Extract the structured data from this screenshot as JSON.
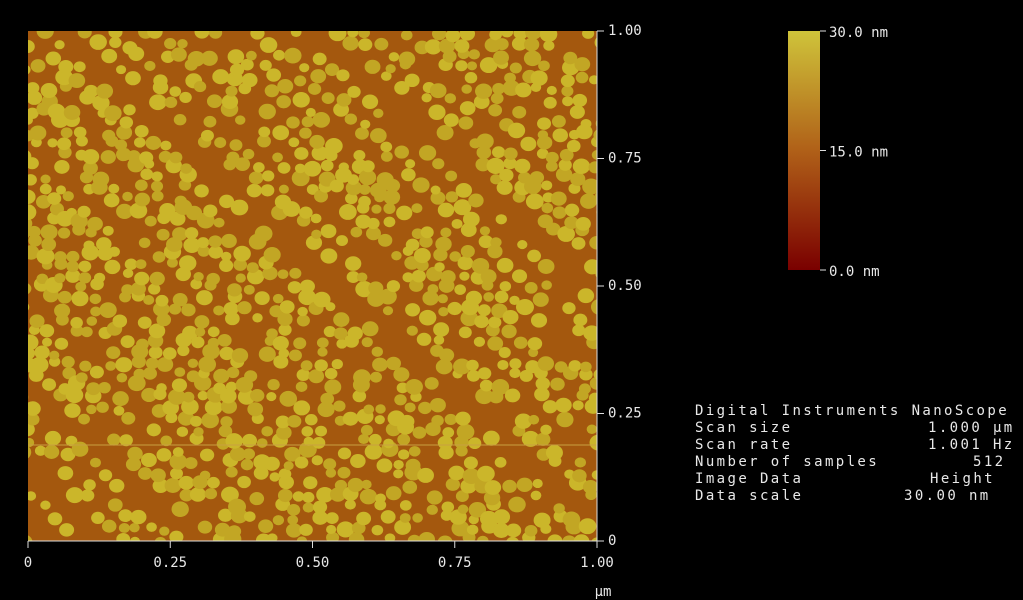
{
  "image": {
    "y_axis": {
      "ticks": [
        "1.00",
        "0.75",
        "0.50",
        "0.25",
        "0"
      ]
    },
    "x_axis": {
      "ticks": [
        "0",
        "0.25",
        "0.50",
        "0.75",
        "1.00"
      ],
      "unit": "µm"
    },
    "color_bar": {
      "labels": [
        "30.0 nm",
        "15.0 nm",
        "0.0 nm"
      ]
    }
  },
  "info_panel": {
    "header": "Digital Instruments NanoScope",
    "rows": [
      [
        "Scan size",
        "1.000 µm"
      ],
      [
        "Scan rate",
        "1.001 Hz"
      ],
      [
        "Number of samples",
        "512"
      ],
      [
        "Image Data",
        "Height"
      ],
      [
        "Data scale",
        "30.00 nm"
      ]
    ]
  }
}
